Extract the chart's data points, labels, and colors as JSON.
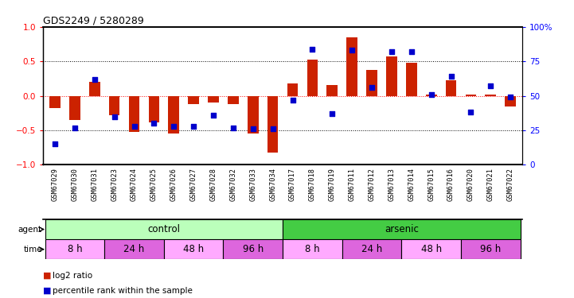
{
  "title": "GDS2249 / 5280289",
  "samples": [
    "GSM67029",
    "GSM67030",
    "GSM67031",
    "GSM67023",
    "GSM67024",
    "GSM67025",
    "GSM67026",
    "GSM67027",
    "GSM67028",
    "GSM67032",
    "GSM67033",
    "GSM67034",
    "GSM67017",
    "GSM67018",
    "GSM67019",
    "GSM67011",
    "GSM67012",
    "GSM67013",
    "GSM67014",
    "GSM67015",
    "GSM67016",
    "GSM67020",
    "GSM67021",
    "GSM67022"
  ],
  "log2_ratio": [
    -0.18,
    -0.35,
    0.2,
    -0.28,
    -0.52,
    -0.38,
    -0.55,
    -0.12,
    -0.1,
    -0.12,
    -0.55,
    -0.82,
    0.18,
    0.52,
    0.16,
    0.85,
    0.38,
    0.57,
    0.48,
    0.02,
    0.23,
    0.02,
    0.02,
    -0.15
  ],
  "percentile": [
    15,
    27,
    62,
    35,
    28,
    30,
    28,
    28,
    36,
    27,
    26,
    26,
    47,
    84,
    37,
    83,
    56,
    82,
    82,
    51,
    64,
    38,
    57,
    49
  ],
  "agent_groups": [
    {
      "label": "control",
      "start": 0,
      "end": 12,
      "color": "#bbffbb"
    },
    {
      "label": "arsenic",
      "start": 12,
      "end": 24,
      "color": "#44cc44"
    }
  ],
  "time_groups": [
    {
      "label": "8 h",
      "start": 0,
      "end": 3,
      "color": "#ffaaff"
    },
    {
      "label": "24 h",
      "start": 3,
      "end": 6,
      "color": "#dd66dd"
    },
    {
      "label": "48 h",
      "start": 6,
      "end": 9,
      "color": "#ffaaff"
    },
    {
      "label": "96 h",
      "start": 9,
      "end": 12,
      "color": "#dd66dd"
    },
    {
      "label": "8 h",
      "start": 12,
      "end": 15,
      "color": "#ffaaff"
    },
    {
      "label": "24 h",
      "start": 15,
      "end": 18,
      "color": "#dd66dd"
    },
    {
      "label": "48 h",
      "start": 18,
      "end": 21,
      "color": "#ffaaff"
    },
    {
      "label": "96 h",
      "start": 21,
      "end": 24,
      "color": "#dd66dd"
    }
  ],
  "bar_color": "#cc2200",
  "dot_color": "#0000cc",
  "ylim": [
    -1,
    1
  ],
  "y2lim": [
    0,
    100
  ],
  "yticks": [
    -1,
    -0.5,
    0,
    0.5,
    1
  ],
  "y2ticks": [
    0,
    25,
    50,
    75,
    100
  ],
  "bar_width": 0.55,
  "dot_size": 22
}
